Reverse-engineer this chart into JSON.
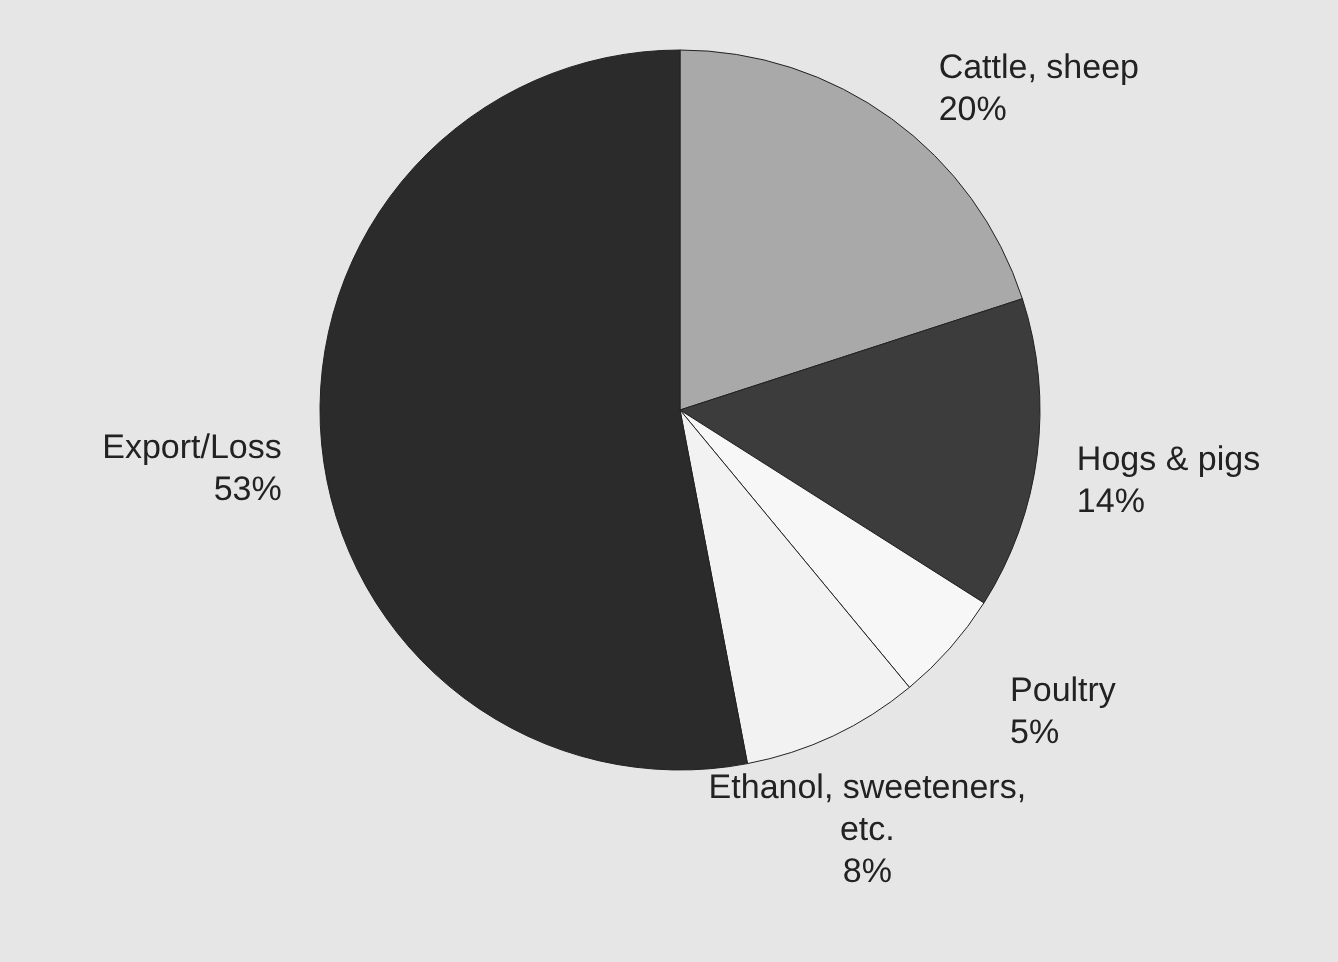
{
  "chart_data": {
    "type": "pie",
    "categories": [
      "Cattle, sheep",
      "Hogs & pigs",
      "Poultry",
      "Ethanol, sweeteners, etc.",
      "Export/Loss"
    ],
    "values": [
      20,
      14,
      5,
      8,
      53
    ],
    "value_labels": [
      "20%",
      "14%",
      "5%",
      "8%",
      "53%"
    ],
    "colors": [
      "#a9a9a9",
      "#3c3c3c",
      "#f7f7f7",
      "#f2f2f2",
      "#2b2b2b"
    ]
  }
}
